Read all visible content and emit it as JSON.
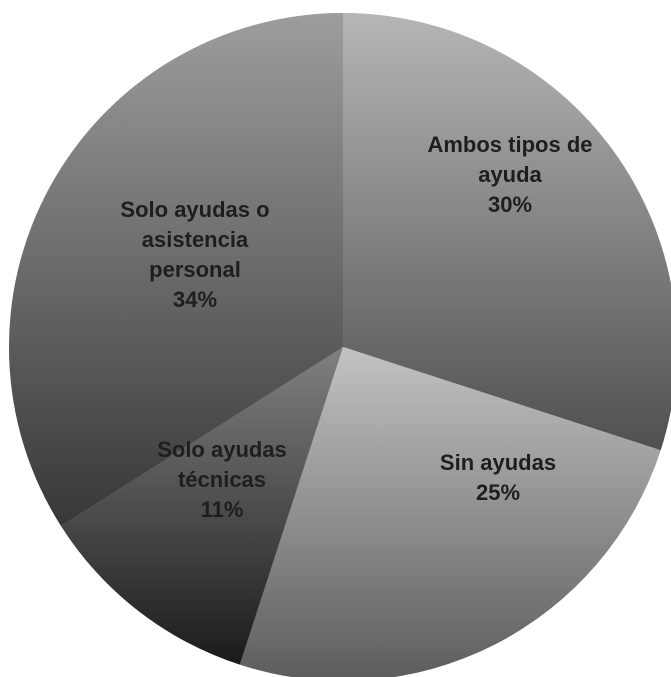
{
  "chart_data": {
    "type": "pie",
    "categories": [
      "Ambos tipos de ayuda",
      "Sin ayudas",
      "Solo ayudas técnicas",
      "Solo ayudas o asistencia personal"
    ],
    "values": [
      30,
      25,
      11,
      34
    ],
    "value_labels": [
      "30%",
      "25%",
      "11%",
      "34%"
    ],
    "colors": [
      "#858585",
      "#9a9a9a",
      "#2c2c2c",
      "#5c5c5c"
    ]
  }
}
